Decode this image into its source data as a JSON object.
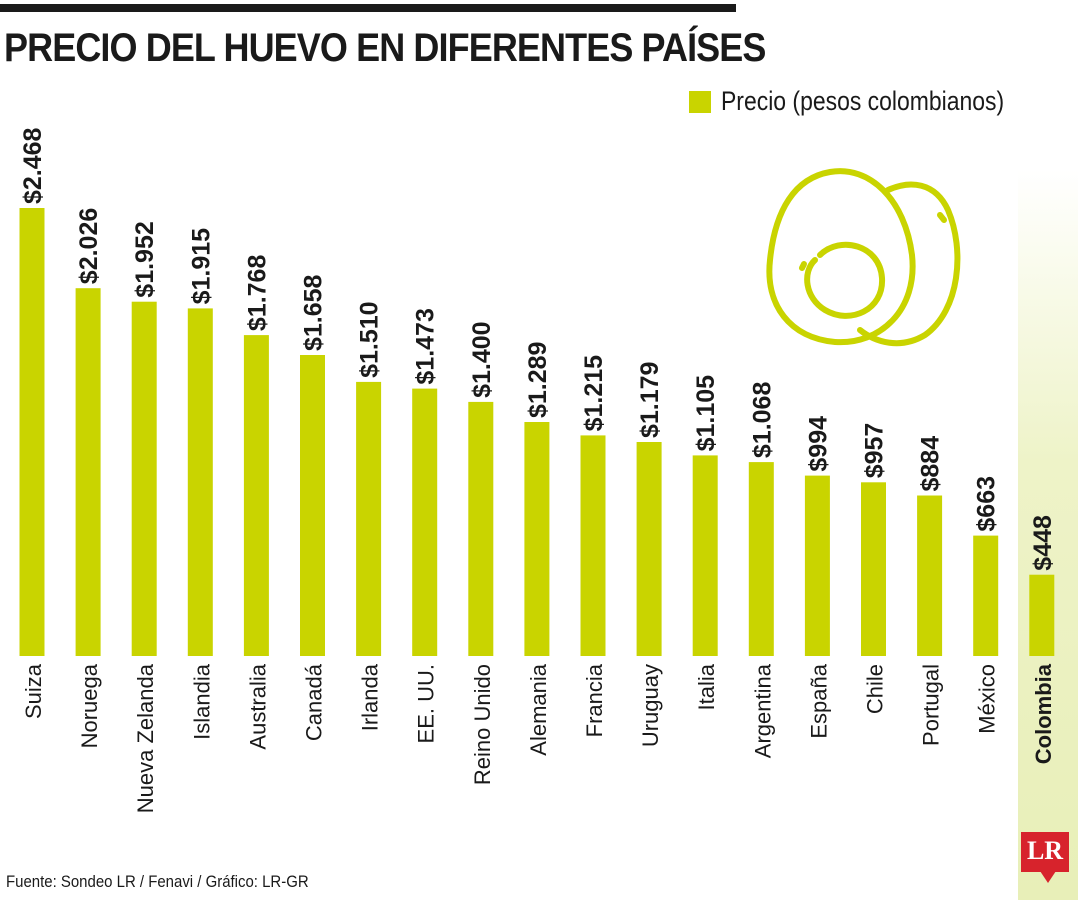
{
  "title": "PRECIO DEL HUEVO EN DIFERENTES PAÍSES",
  "legend_label": "Precio (pesos colombianos)",
  "source": "Fuente: Sondeo LR / Fenavi / Gráfico: LR-GR",
  "logo": "LR",
  "colors": {
    "bar": "#c9d400",
    "highlight_band": "#eef3c8",
    "egg_stroke": "#c9d400",
    "text": "#1a1a1a",
    "logo": "#d7232c"
  },
  "icons": [
    "egg-icon"
  ],
  "chart_data": {
    "type": "bar",
    "orientation": "vertical",
    "title": "PRECIO DEL HUEVO EN DIFERENTES PAÍSES",
    "categories": [
      "Suiza",
      "Noruega",
      "Nueva Zelanda",
      "Islandia",
      "Australia",
      "Canadá",
      "Irlanda",
      "EE. UU.",
      "Reino Unido",
      "Alemania",
      "Francia",
      "Uruguay",
      "Italia",
      "Argentina",
      "España",
      "Chile",
      "Portugal",
      "México",
      "Colombia"
    ],
    "series": [
      {
        "name": "Precio (pesos colombianos)",
        "values": [
          2468,
          2026,
          1952,
          1915,
          1768,
          1658,
          1510,
          1473,
          1400,
          1289,
          1215,
          1179,
          1105,
          1068,
          994,
          957,
          884,
          663,
          448
        ]
      }
    ],
    "value_labels": [
      "$2.468",
      "$2.026",
      "$1.952",
      "$1.915",
      "$1.768",
      "$1.658",
      "$1.510",
      "$1.473",
      "$1.400",
      "$1.289",
      "$1.215",
      "$1.179",
      "$1.105",
      "$1.068",
      "$994",
      "$957",
      "$884",
      "$663",
      "$448"
    ],
    "highlighted_category": "Colombia",
    "ylim": [
      0,
      2468
    ],
    "grid": false,
    "axes_visible": false,
    "legend_position": "top-right"
  }
}
